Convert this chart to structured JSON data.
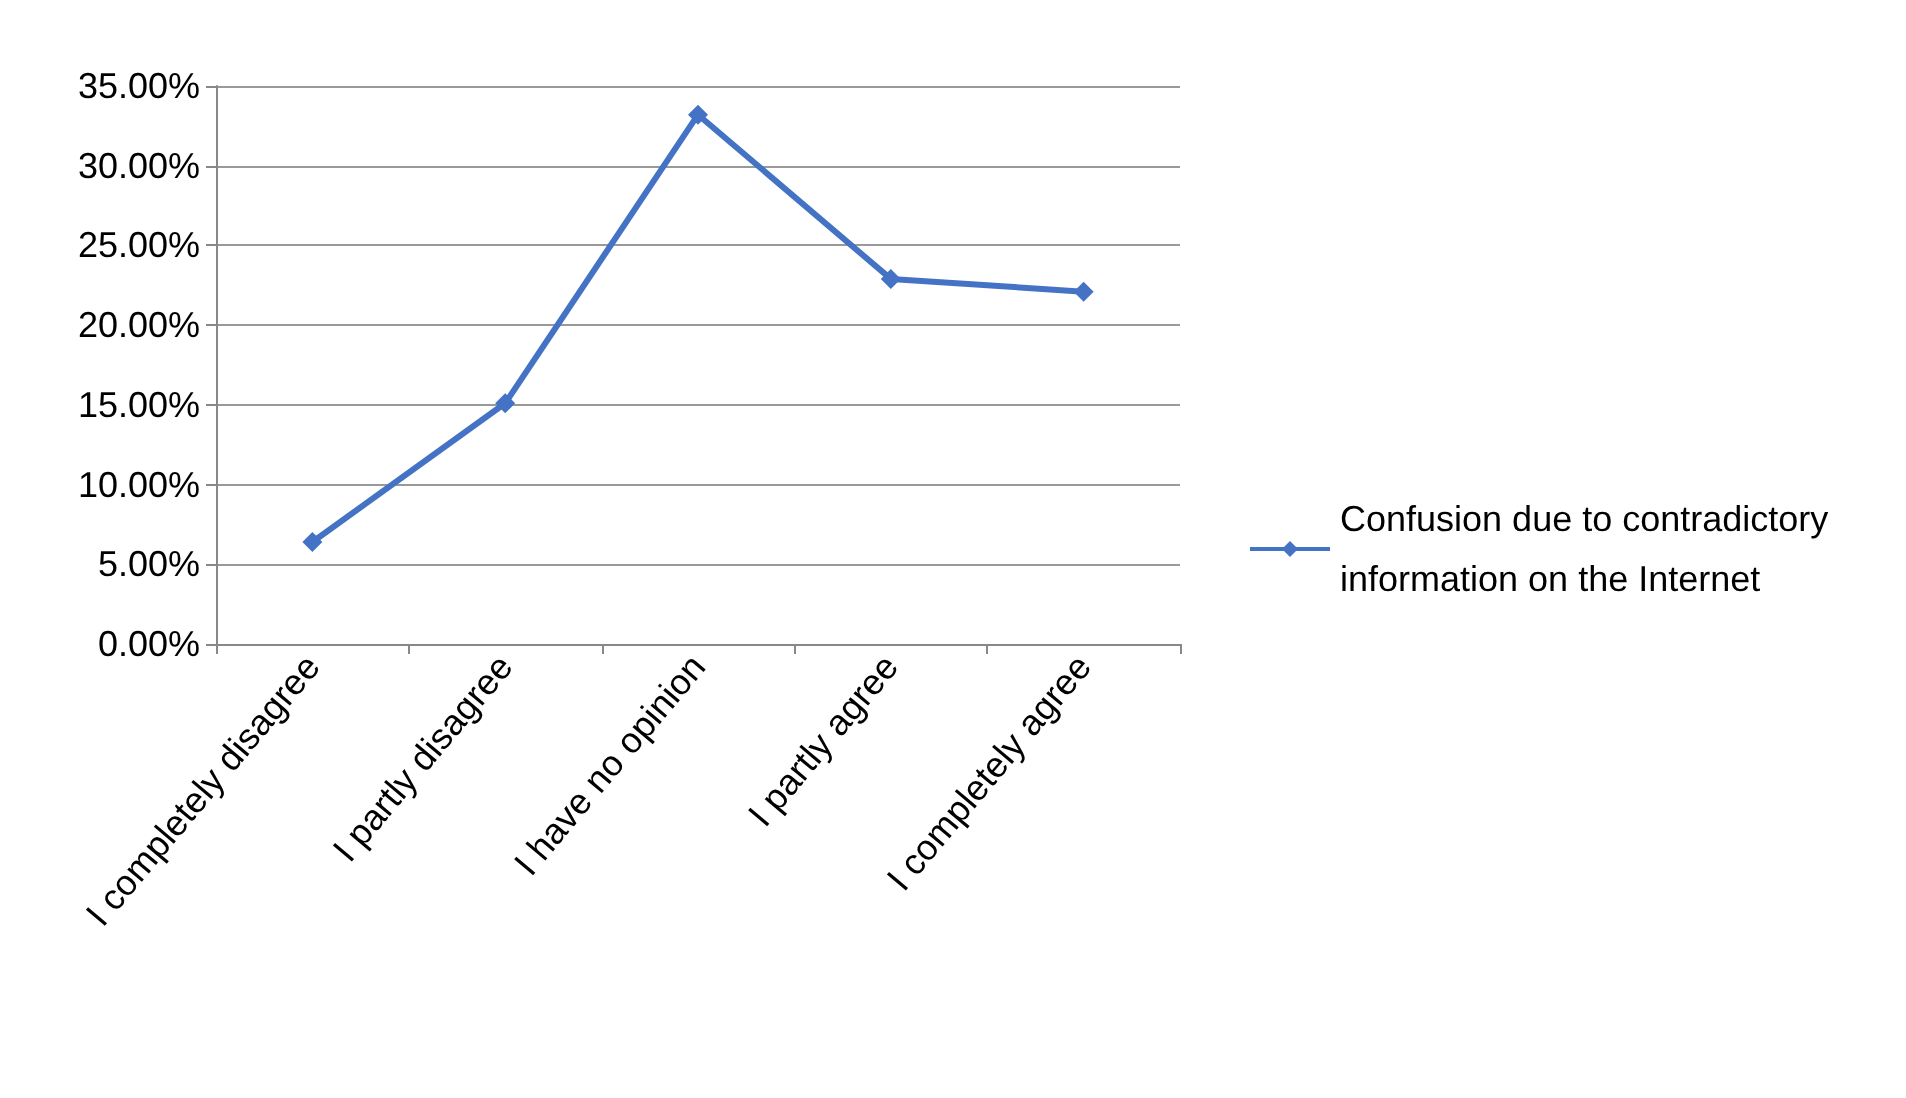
{
  "chart_data": {
    "type": "line",
    "categories": [
      "I completely disagree",
      "I partly disagree",
      "I have no opinion",
      "I partly agree",
      "I completely agree"
    ],
    "series": [
      {
        "name": "Confusion due to contradictory information on the Internet",
        "color": "#4472c4",
        "values": [
          6.4,
          15.1,
          33.2,
          22.9,
          22.1
        ]
      }
    ],
    "ylim": [
      0,
      35
    ],
    "yticks": [
      {
        "value": 0,
        "label": "0.00%"
      },
      {
        "value": 5,
        "label": "5.00%"
      },
      {
        "value": 10,
        "label": "10.00%"
      },
      {
        "value": 15,
        "label": "15.00%"
      },
      {
        "value": 20,
        "label": "20.00%"
      },
      {
        "value": 25,
        "label": "25.00%"
      },
      {
        "value": 30,
        "label": "30.00%"
      },
      {
        "value": 35,
        "label": "35.00%"
      }
    ],
    "grid": "y",
    "legend": "right",
    "marker": "diamond",
    "line_style": "solid"
  }
}
